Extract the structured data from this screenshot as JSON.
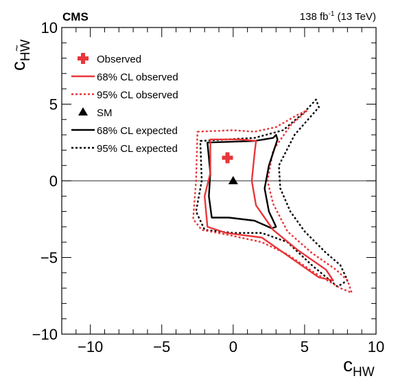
{
  "chart_data": {
    "type": "contour",
    "experiment_label": "CMS",
    "lumi_label": "138 fb",
    "lumi_superscript": "-1",
    "lumi_energy": " (13 TeV)",
    "xlabel_main": "c",
    "xlabel_sub": "HW",
    "ylabel_main": "c",
    "ylabel_sub": "HW",
    "ylabel_tilde": "~",
    "xlim": [
      -12,
      10
    ],
    "ylim": [
      -10,
      10
    ],
    "x_ticks": [
      -10,
      -5,
      0,
      5,
      10
    ],
    "x_tick_labels": [
      "−10",
      "−5",
      "0",
      "5",
      "10"
    ],
    "y_ticks": [
      -10,
      -5,
      0,
      5,
      10
    ],
    "y_tick_labels": [
      "−10",
      "−5",
      "0",
      "5",
      "10"
    ],
    "reference_line_y": 0,
    "legend_position": "top-left",
    "colors": {
      "observed": "#e8363a",
      "expected": "#000000",
      "axis": "#000000",
      "reference_line": "#555555"
    },
    "legend": [
      {
        "label": "Observed",
        "symbol": "cross",
        "color": "#e8363a"
      },
      {
        "label": "68% CL observed",
        "symbol": "solid",
        "color": "#e8363a"
      },
      {
        "label": "95% CL observed",
        "symbol": "dashed",
        "color": "#e8363a"
      },
      {
        "label": "SM",
        "symbol": "triangle",
        "color": "#000000"
      },
      {
        "label": "68% CL expected",
        "symbol": "solid",
        "color": "#000000"
      },
      {
        "label": "95% CL expected",
        "symbol": "dashed",
        "color": "#000000"
      }
    ],
    "points": [
      {
        "name": "observed-best-fit",
        "x": -0.4,
        "y": 1.5,
        "marker": "cross",
        "color": "#e8363a"
      },
      {
        "name": "sm-point",
        "x": 0.0,
        "y": 0.0,
        "marker": "triangle",
        "color": "#000000"
      }
    ],
    "contours": [
      {
        "name": "95% CL expected",
        "color": "#000000",
        "dashed": true,
        "points": [
          [
            -2.3,
            2.6
          ],
          [
            1.5,
            2.8
          ],
          [
            3.5,
            3.3
          ],
          [
            5.0,
            4.5
          ],
          [
            5.8,
            5.3
          ],
          [
            6.0,
            4.8
          ],
          [
            4.3,
            3.0
          ],
          [
            3.2,
            1.0
          ],
          [
            3.3,
            -0.5
          ],
          [
            4.0,
            -2.0
          ],
          [
            5.0,
            -3.3
          ],
          [
            6.5,
            -4.7
          ],
          [
            7.5,
            -5.5
          ],
          [
            8.0,
            -6.5
          ],
          [
            7.3,
            -6.9
          ],
          [
            5.5,
            -5.5
          ],
          [
            3.8,
            -4.0
          ],
          [
            2.0,
            -3.4
          ],
          [
            0.0,
            -3.4
          ],
          [
            -2.0,
            -3.2
          ],
          [
            -2.6,
            -2.0
          ],
          [
            -2.2,
            0.0
          ],
          [
            -2.3,
            2.6
          ]
        ]
      },
      {
        "name": "95% CL observed",
        "color": "#e8363a",
        "dashed": true,
        "points": [
          [
            -2.5,
            3.2
          ],
          [
            0.0,
            3.3
          ],
          [
            1.5,
            3.2
          ],
          [
            3.0,
            3.5
          ],
          [
            4.5,
            4.3
          ],
          [
            5.2,
            4.6
          ],
          [
            4.0,
            3.6
          ],
          [
            2.8,
            2.0
          ],
          [
            2.4,
            0.0
          ],
          [
            2.8,
            -1.5
          ],
          [
            3.8,
            -3.3
          ],
          [
            5.5,
            -4.7
          ],
          [
            7.2,
            -5.8
          ],
          [
            8.0,
            -6.5
          ],
          [
            8.3,
            -7.3
          ],
          [
            7.5,
            -7.0
          ],
          [
            5.7,
            -6.0
          ],
          [
            3.8,
            -4.8
          ],
          [
            2.0,
            -4.0
          ],
          [
            -0.5,
            -3.5
          ],
          [
            -2.2,
            -3.2
          ],
          [
            -2.8,
            -2.5
          ],
          [
            -2.6,
            0.0
          ],
          [
            -2.5,
            3.2
          ]
        ]
      },
      {
        "name": "68% CL expected",
        "color": "#000000",
        "dashed": false,
        "points": [
          [
            -1.8,
            2.5
          ],
          [
            1.5,
            2.6
          ],
          [
            2.8,
            2.8
          ],
          [
            3.0,
            3.0
          ],
          [
            3.1,
            2.7
          ],
          [
            2.5,
            1.0
          ],
          [
            2.2,
            -0.5
          ],
          [
            2.5,
            -2.0
          ],
          [
            3.0,
            -3.0
          ],
          [
            2.7,
            -3.1
          ],
          [
            1.5,
            -2.6
          ],
          [
            -0.3,
            -2.4
          ],
          [
            -1.5,
            -2.4
          ],
          [
            -1.7,
            -1.0
          ],
          [
            -1.6,
            0.5
          ],
          [
            -1.8,
            2.5
          ]
        ]
      },
      {
        "name": "68% CL observed",
        "color": "#e8363a",
        "dashed": false,
        "points": [
          [
            -1.6,
            2.7
          ],
          [
            0.5,
            2.7
          ],
          [
            1.6,
            2.6
          ],
          [
            1.5,
            1.8
          ],
          [
            1.3,
            0.0
          ],
          [
            1.6,
            -1.6
          ],
          [
            2.8,
            -3.2
          ],
          [
            4.5,
            -4.5
          ],
          [
            6.5,
            -5.8
          ],
          [
            7.0,
            -6.5
          ],
          [
            6.0,
            -6.3
          ],
          [
            4.0,
            -5.0
          ],
          [
            2.0,
            -3.7
          ],
          [
            -0.5,
            -3.4
          ],
          [
            -1.8,
            -3.0
          ],
          [
            -2.0,
            -1.0
          ],
          [
            -1.6,
            0.5
          ],
          [
            -1.6,
            2.7
          ]
        ]
      }
    ]
  }
}
